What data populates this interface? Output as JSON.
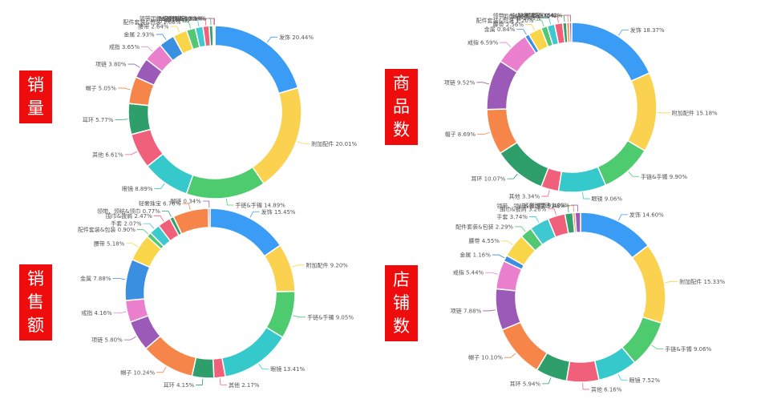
{
  "labels": {
    "sales_volume": "销量",
    "product_count": "商品数",
    "sales_amount": "销售额",
    "store_count": "店铺数"
  },
  "chart_data": [
    {
      "type": "pie",
      "variant": "donut",
      "slices": [
        {
          "name": "发饰",
          "value": 20.44,
          "label": "发饰 20.44%",
          "color": "#3a9cf5"
        },
        {
          "name": "附加配件",
          "value": 20.01,
          "label": "附加配件 20.01%",
          "color": "#fad24f"
        },
        {
          "name": "手链&手镯",
          "value": 14.89,
          "label": "手链&手镯 14.89%",
          "color": "#4dcb6e"
        },
        {
          "name": "眼镜",
          "value": 8.89,
          "label": "眼镜 8.89%",
          "color": "#35c9cc"
        },
        {
          "name": "其他",
          "value": 6.61,
          "label": "其他 6.61%",
          "color": "#f0607a"
        },
        {
          "name": "耳环",
          "value": 5.77,
          "label": "耳环 5.77%",
          "color": "#2e9e6a"
        },
        {
          "name": "帽子",
          "value": 5.05,
          "label": "帽子 5.05%",
          "color": "#f6854a"
        },
        {
          "name": "项链",
          "value": 3.8,
          "label": "项链 3.80%",
          "color": "#9b5ab7"
        },
        {
          "name": "戒指",
          "value": 3.65,
          "label": "戒指 3.65%",
          "color": "#ea7fce"
        },
        {
          "name": "金属",
          "value": 2.93,
          "label": "金属 2.93%",
          "color": "#3b8fe0"
        },
        {
          "name": "腰带",
          "value": 2.64,
          "label": "腰带 2.64%",
          "color": "#f9d649"
        },
        {
          "name": "配件套装&包装",
          "value": 1.66,
          "label": "配件套装&包装 1.66%",
          "color": "#52c873"
        },
        {
          "name": "手套",
          "value": 1.44,
          "label": "手套 1.44%",
          "color": "#3dc9cf"
        },
        {
          "name": "围巾&披肩",
          "value": 1.15,
          "label": "围巾&披肩 1.15%",
          "color": "#f0607a"
        },
        {
          "name": "领带、领结&领巾",
          "value": 0.69,
          "label": "领带、领结&领巾 0.69%",
          "color": "#36a06c"
        },
        {
          "name": "轻奢珠宝",
          "value": 0.24,
          "label": "轻奢珠宝 0.24%",
          "color": "#f6854a"
        },
        {
          "name": "脚链",
          "value": 0.14,
          "label": "脚链 0.14%",
          "color": "#9b5ab7"
        }
      ]
    },
    {
      "type": "pie",
      "variant": "donut",
      "slices": [
        {
          "name": "发饰",
          "value": 18.37,
          "label": "发饰 18.37%",
          "color": "#3a9cf5"
        },
        {
          "name": "附加配件",
          "value": 15.18,
          "label": "附加配件 15.18%",
          "color": "#fad24f"
        },
        {
          "name": "手链&手镯",
          "value": 9.9,
          "label": "手链&手镯 9.90%",
          "color": "#4dcb6e"
        },
        {
          "name": "眼镜",
          "value": 9.06,
          "label": "眼镜 9.06%",
          "color": "#35c9cc"
        },
        {
          "name": "其他",
          "value": 3.34,
          "label": "其他 3.34%",
          "color": "#f0607a"
        },
        {
          "name": "耳环",
          "value": 10.07,
          "label": "耳环 10.07%",
          "color": "#2e9e6a"
        },
        {
          "name": "帽子",
          "value": 8.69,
          "label": "帽子 8.69%",
          "color": "#f6854a"
        },
        {
          "name": "项链",
          "value": 9.52,
          "label": "项链 9.52%",
          "color": "#9b5ab7"
        },
        {
          "name": "戒指",
          "value": 6.59,
          "label": "戒指 6.59%",
          "color": "#ea7fce"
        },
        {
          "name": "金属",
          "value": 0.84,
          "label": "金属 0.84%",
          "color": "#3b8fe0"
        },
        {
          "name": "腰带",
          "value": 2.56,
          "label": "腰带 2.56%",
          "color": "#f9d649"
        },
        {
          "name": "配件套装&包装",
          "value": 1.2,
          "label": "配件套装&包装 1.20%",
          "color": "#52c873"
        },
        {
          "name": "手套",
          "value": 1.43,
          "label": "手套 1.43%",
          "color": "#3dc9cf"
        },
        {
          "name": "围巾&披肩",
          "value": 1.54,
          "label": "围巾&披肩 1.54%",
          "color": "#f0607a"
        },
        {
          "name": "领带、领结&领巾",
          "value": 0.75,
          "label": "领带、领结&领巾 0.75%",
          "color": "#36a06c"
        },
        {
          "name": "轻奢珠宝",
          "value": 0.54,
          "label": "轻奢珠宝 0.54%",
          "color": "#f6854a"
        },
        {
          "name": "脚链",
          "value": 0.42,
          "label": "脚链 0.42%",
          "color": "#9b5ab7"
        }
      ]
    },
    {
      "type": "pie",
      "variant": "donut",
      "slices": [
        {
          "name": "发饰",
          "value": 15.45,
          "label": "发饰 15.45%",
          "color": "#3a9cf5"
        },
        {
          "name": "附加配件",
          "value": 9.2,
          "label": "附加配件 9.20%",
          "color": "#fad24f"
        },
        {
          "name": "手链&手镯",
          "value": 9.05,
          "label": "手链&手镯 9.05%",
          "color": "#4dcb6e"
        },
        {
          "name": "眼镜",
          "value": 13.41,
          "label": "眼镜 13.41%",
          "color": "#35c9cc"
        },
        {
          "name": "其他",
          "value": 2.17,
          "label": "其他 2.17%",
          "color": "#f0607a"
        },
        {
          "name": "耳环",
          "value": 4.15,
          "label": "耳环 4.15%",
          "color": "#2e9e6a"
        },
        {
          "name": "帽子",
          "value": 10.24,
          "label": "帽子 10.24%",
          "color": "#f6854a"
        },
        {
          "name": "项链",
          "value": 5.8,
          "label": "项链 5.80%",
          "color": "#9b5ab7"
        },
        {
          "name": "戒指",
          "value": 4.16,
          "label": "戒指 4.16%",
          "color": "#ea7fce"
        },
        {
          "name": "金属",
          "value": 7.88,
          "label": "金属 7.88%",
          "color": "#3b8fe0"
        },
        {
          "name": "腰带",
          "value": 5.18,
          "label": "腰带 5.18%",
          "color": "#f9d649"
        },
        {
          "name": "配件套装&包装",
          "value": 0.9,
          "label": "配件套装&包装 0.90%",
          "color": "#52c873"
        },
        {
          "name": "手套",
          "value": 2.07,
          "label": "手套 2.07%",
          "color": "#3dc9cf"
        },
        {
          "name": "围巾&披肩",
          "value": 2.47,
          "label": "围巾&披肩 2.47%",
          "color": "#f0607a"
        },
        {
          "name": "领带、领结&领巾",
          "value": 0.77,
          "label": "领带、领结&领巾 0.77%",
          "color": "#36a06c"
        },
        {
          "name": "轻奢珠宝",
          "value": 6.76,
          "label": "轻奢珠宝 6.76%",
          "color": "#f6854a"
        },
        {
          "name": "脚链",
          "value": 0.34,
          "label": "脚链 0.34%",
          "color": "#9b5ab7"
        }
      ]
    },
    {
      "type": "pie",
      "variant": "donut",
      "slices": [
        {
          "name": "发饰",
          "value": 14.6,
          "label": "发饰 14.60%",
          "color": "#3a9cf5"
        },
        {
          "name": "附加配件",
          "value": 15.33,
          "label": "附加配件 15.33%",
          "color": "#fad24f"
        },
        {
          "name": "手链&手镯",
          "value": 9.06,
          "label": "手链&手镯 9.06%",
          "color": "#4dcb6e"
        },
        {
          "name": "眼镜",
          "value": 7.52,
          "label": "眼镜 7.52%",
          "color": "#35c9cc"
        },
        {
          "name": "其他",
          "value": 6.16,
          "label": "其他 6.16%",
          "color": "#f0607a"
        },
        {
          "name": "耳环",
          "value": 5.94,
          "label": "耳环 5.94%",
          "color": "#2e9e6a"
        },
        {
          "name": "帽子",
          "value": 10.1,
          "label": "帽子 10.10%",
          "color": "#f6854a"
        },
        {
          "name": "项链",
          "value": 7.88,
          "label": "项链 7.88%",
          "color": "#9b5ab7"
        },
        {
          "name": "戒指",
          "value": 5.44,
          "label": "戒指 5.44%",
          "color": "#ea7fce"
        },
        {
          "name": "金属",
          "value": 1.16,
          "label": "金属 1.16%",
          "color": "#3b8fe0"
        },
        {
          "name": "腰带",
          "value": 4.55,
          "label": "腰带 4.55%",
          "color": "#f9d649"
        },
        {
          "name": "配件套装&包装",
          "value": 2.29,
          "label": "配件套装&包装 2.29%",
          "color": "#52c873"
        },
        {
          "name": "手套",
          "value": 3.74,
          "label": "手套 3.74%",
          "color": "#3dc9cf"
        },
        {
          "name": "围巾&披肩",
          "value": 3.26,
          "label": "围巾&披肩 3.26%",
          "color": "#f0607a"
        },
        {
          "name": "领带、领结&领巾",
          "value": 1.51,
          "label": "领带、领结&领巾 1.51%",
          "color": "#36a06c"
        },
        {
          "name": "轻奢珠宝",
          "value": 0.43,
          "label": "轻奢珠宝 0.43%",
          "color": "#f6854a"
        },
        {
          "name": "脚链",
          "value": 1.03,
          "label": "脚链 1.03%",
          "color": "#9b5ab7"
        }
      ]
    }
  ]
}
